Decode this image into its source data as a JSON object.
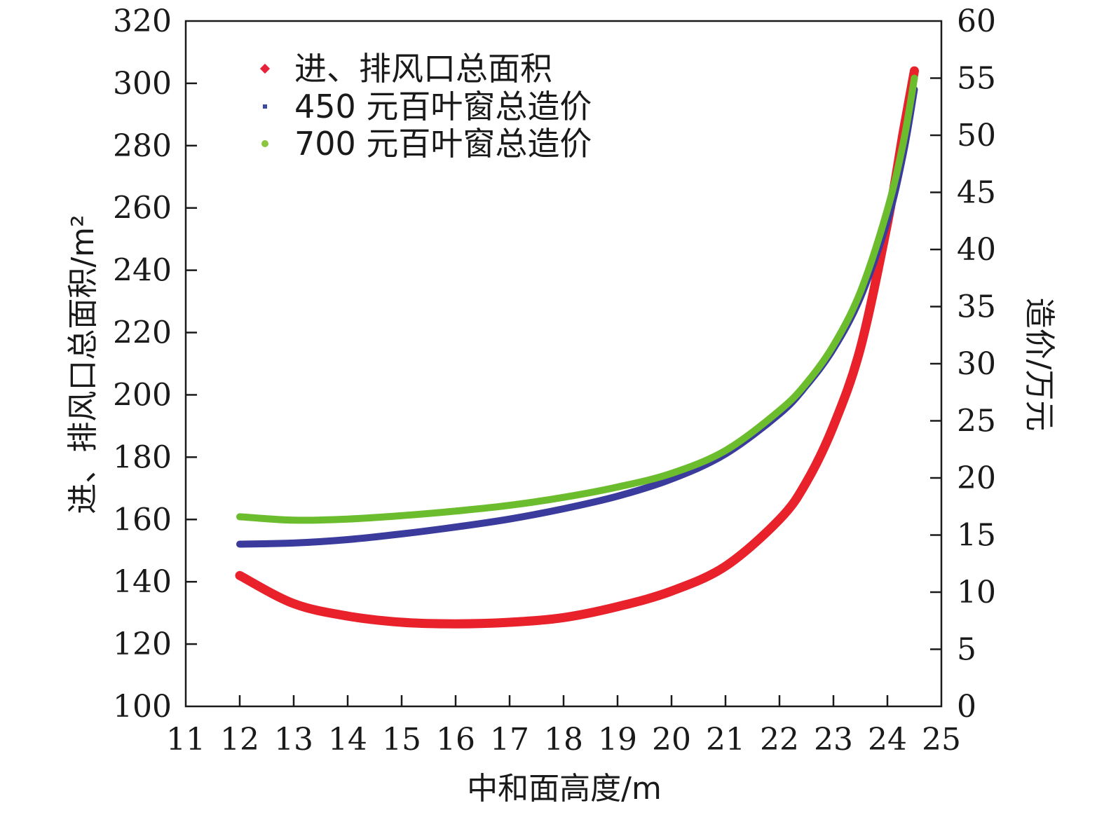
{
  "chart_data": {
    "type": "line",
    "xlabel": "中和面高度/m",
    "ylabel_left": "进、排风口总面积/m²",
    "ylabel_right": "造价/万元",
    "xlim": [
      11,
      25
    ],
    "ylim_left": [
      100,
      320
    ],
    "ylim_right": [
      0,
      60
    ],
    "x_ticks": [
      "11",
      "12",
      "13",
      "14",
      "15",
      "16",
      "17",
      "18",
      "19",
      "20",
      "21",
      "22",
      "23",
      "24",
      "25"
    ],
    "y_left_ticks": [
      "100",
      "120",
      "140",
      "160",
      "180",
      "200",
      "220",
      "240",
      "260",
      "280",
      "300",
      "320"
    ],
    "y_right_ticks": [
      "0",
      "5",
      "10",
      "15",
      "20",
      "25",
      "30",
      "35",
      "40",
      "45",
      "50",
      "55",
      "60"
    ],
    "grid": false,
    "legend_position": "top-left",
    "series": [
      {
        "name": "进、排风口总面积",
        "axis": "left",
        "color": "#e8212b",
        "marker_color": "#e8213a",
        "x": [
          12,
          13,
          14,
          15,
          16,
          17,
          18,
          19,
          20,
          21,
          22,
          22.5,
          23,
          23.5,
          24,
          24.3,
          24.5
        ],
        "y": [
          142,
          133,
          129,
          127,
          126.5,
          127,
          128.5,
          132,
          137,
          145,
          160,
          172,
          190,
          215,
          255,
          285,
          304
        ]
      },
      {
        "name": "450 元百叶窗总造价",
        "axis": "right",
        "color": "#3b3b9e",
        "marker_color": "#3b4b9e",
        "x": [
          12,
          13,
          14,
          15,
          16,
          17,
          18,
          19,
          20,
          21,
          22,
          22.5,
          23,
          23.5,
          24,
          24.3,
          24.5
        ],
        "y": [
          14.2,
          14.3,
          14.6,
          15.1,
          15.7,
          16.4,
          17.3,
          18.4,
          19.9,
          22.1,
          25.6,
          28.1,
          31.3,
          35.8,
          42.5,
          48.5,
          54
        ]
      },
      {
        "name": "700 元百叶窗总造价",
        "axis": "right",
        "color": "#6cbd2e",
        "marker_color": "#8cc63f",
        "x": [
          12,
          13,
          14,
          15,
          16,
          17,
          18,
          19,
          20,
          21,
          22,
          22.5,
          23,
          23.5,
          24,
          24.3,
          24.5
        ],
        "y": [
          16.6,
          16.3,
          16.4,
          16.7,
          17.1,
          17.6,
          18.3,
          19.2,
          20.4,
          22.4,
          25.9,
          28.3,
          31.6,
          36.3,
          43.5,
          49.5,
          55
        ]
      }
    ]
  }
}
